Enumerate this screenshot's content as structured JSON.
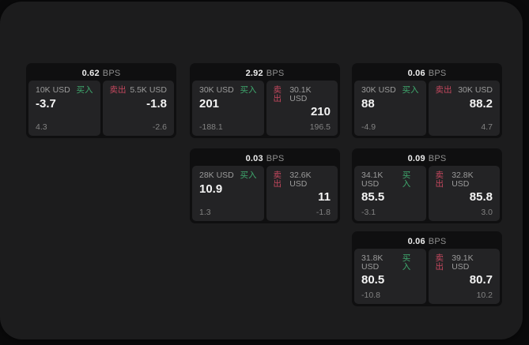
{
  "labels": {
    "buy": "买入",
    "sell": "卖出",
    "bps": "BPS"
  },
  "colors": {
    "buy_green": "#3fa96e",
    "sell_red": "#c4485e",
    "panel_bg": "#1c1c1d",
    "card_bg": "#0f0f10",
    "tile_bg": "#232325"
  },
  "cards": [
    {
      "bps": "0.62",
      "buy": {
        "amount": "10K USD",
        "value": "-3.7",
        "sub": "4.3"
      },
      "sell": {
        "amount": "5.5K USD",
        "value": "-1.8",
        "sub": "-2.6"
      }
    },
    {
      "bps": "2.92",
      "buy": {
        "amount": "30K USD",
        "value": "201",
        "sub": "-188.1"
      },
      "sell": {
        "amount": "30.1K USD",
        "value": "210",
        "sub": "196.5"
      }
    },
    {
      "bps": "0.06",
      "buy": {
        "amount": "30K USD",
        "value": "88",
        "sub": "-4.9"
      },
      "sell": {
        "amount": "30K USD",
        "value": "88.2",
        "sub": "4.7"
      }
    },
    {
      "bps": "0.03",
      "buy": {
        "amount": "28K USD",
        "value": "10.9",
        "sub": "1.3"
      },
      "sell": {
        "amount": "32.6K USD",
        "value": "11",
        "sub": "-1.8"
      }
    },
    {
      "bps": "0.09",
      "buy": {
        "amount": "34.1K USD",
        "value": "85.5",
        "sub": "-3.1"
      },
      "sell": {
        "amount": "32.8K USD",
        "value": "85.8",
        "sub": "3.0"
      }
    },
    {
      "bps": "0.06",
      "buy": {
        "amount": "31.8K USD",
        "value": "80.5",
        "sub": "-10.8"
      },
      "sell": {
        "amount": "39.1K USD",
        "value": "80.7",
        "sub": "10.2"
      }
    }
  ]
}
